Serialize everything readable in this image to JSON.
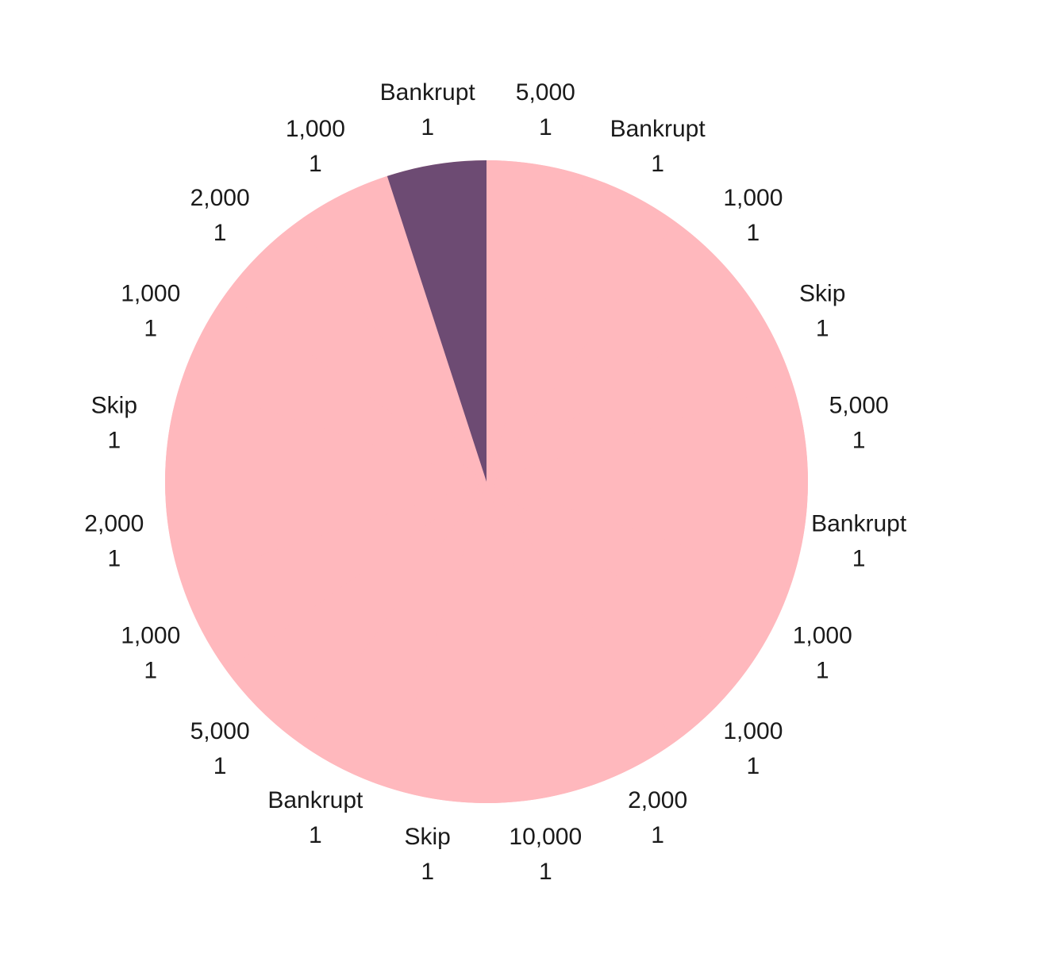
{
  "chart_data": {
    "type": "pie",
    "title": "",
    "slices": [
      {
        "label": "5,000",
        "value": 1,
        "value_label": "1"
      },
      {
        "label": "Bankrupt",
        "value": 1,
        "value_label": "1"
      },
      {
        "label": "1,000",
        "value": 1,
        "value_label": "1"
      },
      {
        "label": "Skip",
        "value": 1,
        "value_label": "1"
      },
      {
        "label": "5,000",
        "value": 1,
        "value_label": "1"
      },
      {
        "label": "Bankrupt",
        "value": 1,
        "value_label": "1"
      },
      {
        "label": "1,000",
        "value": 1,
        "value_label": "1"
      },
      {
        "label": "1,000",
        "value": 1,
        "value_label": "1"
      },
      {
        "label": "2,000",
        "value": 1,
        "value_label": "1"
      },
      {
        "label": "10,000",
        "value": 1,
        "value_label": "1"
      },
      {
        "label": "Skip",
        "value": 1,
        "value_label": "1"
      },
      {
        "label": "Bankrupt",
        "value": 1,
        "value_label": "1"
      },
      {
        "label": "5,000",
        "value": 1,
        "value_label": "1"
      },
      {
        "label": "1,000",
        "value": 1,
        "value_label": "1"
      },
      {
        "label": "2,000",
        "value": 1,
        "value_label": "1"
      },
      {
        "label": "Skip",
        "value": 1,
        "value_label": "1"
      },
      {
        "label": "1,000",
        "value": 1,
        "value_label": "1"
      },
      {
        "label": "2,000",
        "value": 1,
        "value_label": "1"
      },
      {
        "label": "1,000",
        "value": 1,
        "value_label": "1"
      },
      {
        "label": "Bankrupt",
        "value": 1,
        "value_label": "1"
      }
    ],
    "start_direction": "12 o'clock",
    "direction": "clockwise",
    "colors": {
      "main": "#ffb8bd",
      "highlight": "#6d4b73",
      "highlight_slice_index": 19,
      "text": "#1a1a1a"
    },
    "legend": "none"
  }
}
